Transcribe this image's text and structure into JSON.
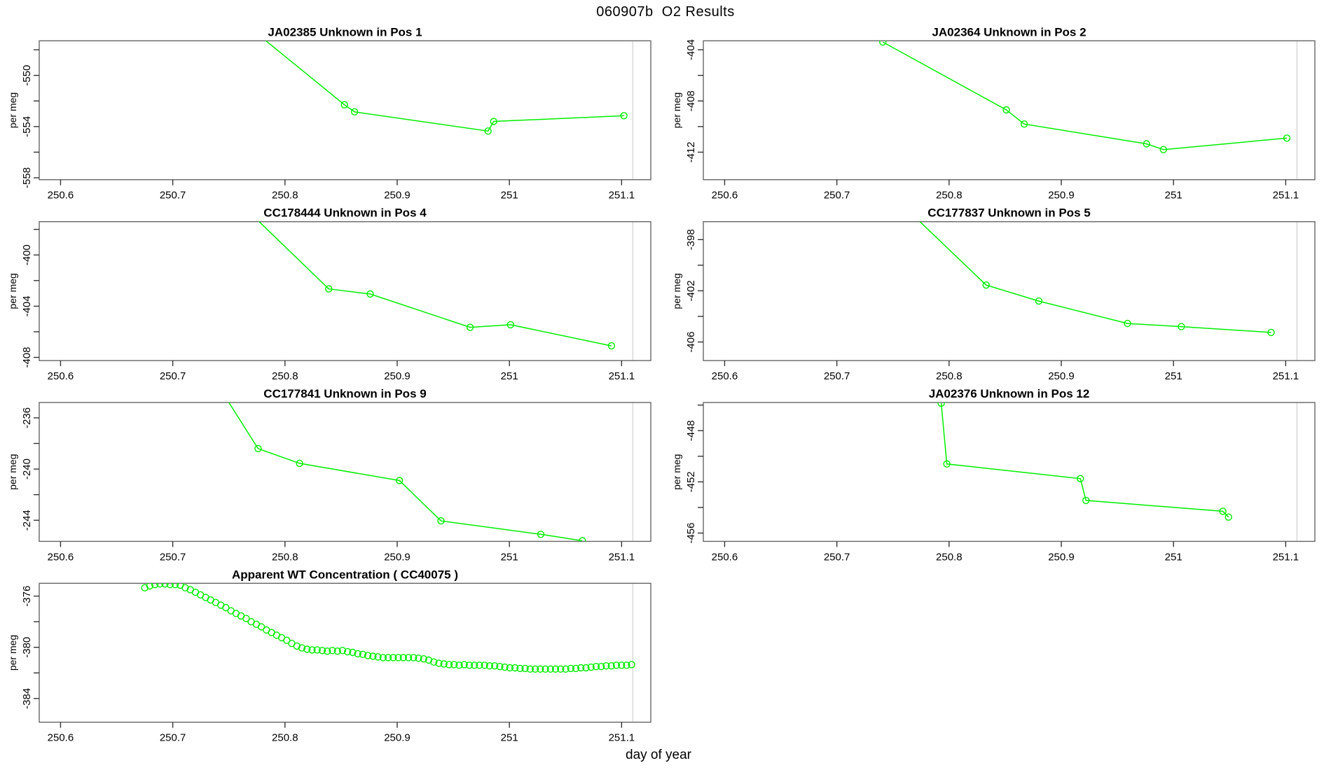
{
  "figure": {
    "title": "060907b  O2 Results",
    "xlabel": "day of year",
    "background_color": "#ffffff",
    "series_color": "#00ee00",
    "box_color": "#666666",
    "tick_color": "#333333",
    "guide_line_color": "#d8d8d8",
    "guide_line_x": 251.11
  },
  "chart_data": [
    {
      "id": "pos1",
      "type": "line",
      "title": "JA02385   Unknown in Pos 1",
      "ylabel": "per meg",
      "grid": false,
      "legend": "none",
      "marker": "open-circle",
      "xlim": [
        250.581,
        251.126
      ],
      "x_ticks": [
        250.6,
        250.7,
        250.8,
        250.9,
        251.0,
        251.1
      ],
      "ylim": [
        -558.15,
        -547.3
      ],
      "y_ticks": [
        -548,
        -550,
        -552,
        -554,
        -556,
        -558
      ],
      "y_tick_labels": [
        -550,
        -554,
        -558
      ],
      "line_enters_top_at_x": 250.783,
      "points": [
        [
          250.853,
          -552.3
        ],
        [
          250.862,
          -552.85
        ],
        [
          250.981,
          -554.35
        ],
        [
          250.986,
          -553.6
        ],
        [
          251.102,
          -553.15
        ]
      ]
    },
    {
      "id": "pos2",
      "type": "line",
      "title": "JA02364   Unknown in Pos 2",
      "ylabel": "per meg",
      "grid": false,
      "legend": "none",
      "marker": "open-circle",
      "xlim": [
        250.581,
        251.126
      ],
      "x_ticks": [
        250.6,
        250.7,
        250.8,
        250.9,
        251.0,
        251.1
      ],
      "ylim": [
        -414.15,
        -403.3
      ],
      "y_ticks": [
        -404,
        -406,
        -408,
        -410,
        -412
      ],
      "y_tick_labels": [
        -404,
        -408,
        -412
      ],
      "points": [
        [
          250.741,
          -403.4
        ],
        [
          250.851,
          -408.7
        ],
        [
          250.867,
          -409.8
        ],
        [
          250.976,
          -411.35
        ],
        [
          250.991,
          -411.8
        ],
        [
          251.101,
          -410.9
        ]
      ]
    },
    {
      "id": "pos4",
      "type": "line",
      "title": "CC178444   Unknown in Pos 4",
      "ylabel": "per meg",
      "grid": false,
      "legend": "none",
      "marker": "open-circle",
      "xlim": [
        250.581,
        251.126
      ],
      "x_ticks": [
        250.6,
        250.7,
        250.8,
        250.9,
        251.0,
        251.1
      ],
      "ylim": [
        -408.25,
        -397.4
      ],
      "y_ticks": [
        -398,
        -400,
        -402,
        -404,
        -406,
        -408
      ],
      "y_tick_labels": [
        -400,
        -404,
        -408
      ],
      "line_enters_top_at_x": 250.777,
      "points": [
        [
          250.839,
          -402.65
        ],
        [
          250.876,
          -403.05
        ],
        [
          250.965,
          -405.65
        ],
        [
          251.001,
          -405.45
        ],
        [
          251.091,
          -407.1
        ]
      ]
    },
    {
      "id": "pos5",
      "type": "line",
      "title": "CC177837   Unknown in Pos 5",
      "ylabel": "per meg",
      "grid": false,
      "legend": "none",
      "marker": "open-circle",
      "xlim": [
        250.581,
        251.126
      ],
      "x_ticks": [
        250.6,
        250.7,
        250.8,
        250.9,
        251.0,
        251.1
      ],
      "ylim": [
        -407.45,
        -396.6
      ],
      "y_ticks": [
        -398,
        -400,
        -402,
        -404,
        -406
      ],
      "y_tick_labels": [
        -398,
        -402,
        -406
      ],
      "line_enters_top_at_x": 250.774,
      "points": [
        [
          250.833,
          -401.55
        ],
        [
          250.88,
          -402.8
        ],
        [
          250.959,
          -404.55
        ],
        [
          251.007,
          -404.8
        ],
        [
          251.087,
          -405.25
        ]
      ]
    },
    {
      "id": "pos9",
      "type": "line",
      "title": "CC177841   Unknown in Pos 9",
      "ylabel": "per meg",
      "grid": false,
      "legend": "none",
      "marker": "open-circle",
      "xlim": [
        250.581,
        251.126
      ],
      "x_ticks": [
        250.6,
        250.7,
        250.8,
        250.9,
        251.0,
        251.1
      ],
      "ylim": [
        -245.65,
        -234.8
      ],
      "y_ticks": [
        -236,
        -238,
        -240,
        -242,
        -244
      ],
      "y_tick_labels": [
        -236,
        -240,
        -244
      ],
      "line_enters_top_at_x": 250.75,
      "points": [
        [
          250.776,
          -238.4
        ],
        [
          250.813,
          -239.55
        ],
        [
          250.902,
          -240.9
        ],
        [
          250.939,
          -244.05
        ],
        [
          251.028,
          -245.1
        ],
        [
          251.065,
          -245.6
        ]
      ]
    },
    {
      "id": "pos12",
      "type": "line",
      "title": "JA02376   Unknown in Pos 12",
      "ylabel": "per meg",
      "grid": false,
      "legend": "none",
      "marker": "open-circle",
      "xlim": [
        250.581,
        251.126
      ],
      "x_ticks": [
        250.6,
        250.7,
        250.8,
        250.9,
        251.0,
        251.1
      ],
      "ylim": [
        -456.65,
        -445.8
      ],
      "y_ticks": [
        -446,
        -448,
        -450,
        -452,
        -454,
        -456
      ],
      "y_tick_labels": [
        -448,
        -452,
        -456
      ],
      "points": [
        [
          250.793,
          -445.85
        ],
        [
          250.798,
          -450.6
        ],
        [
          250.917,
          -451.75
        ],
        [
          250.922,
          -453.45
        ],
        [
          251.044,
          -454.3
        ],
        [
          251.049,
          -454.75
        ]
      ]
    },
    {
      "id": "wt-concentration",
      "type": "scatter",
      "title": "Apparent WT Concentration ( CC40075 )",
      "ylabel": "per meg",
      "grid": false,
      "legend": "none",
      "marker": "open-circle",
      "xlim": [
        250.581,
        251.126
      ],
      "x_ticks": [
        250.6,
        250.7,
        250.8,
        250.9,
        251.0,
        251.1
      ],
      "ylim": [
        -385.85,
        -375.0
      ],
      "y_ticks": [
        -376,
        -378,
        -380,
        -382,
        -384
      ],
      "y_tick_labels": [
        -376,
        -380,
        -384
      ],
      "series_compact": {
        "x_start": 250.675,
        "x_step": 0.00452,
        "values": [
          -375.35,
          -375.2,
          -375.1,
          -375.05,
          -375.05,
          -375.1,
          -375.1,
          -375.15,
          -375.35,
          -375.5,
          -375.7,
          -375.9,
          -376.1,
          -376.3,
          -376.5,
          -376.7,
          -376.9,
          -377.15,
          -377.35,
          -377.55,
          -377.75,
          -378.0,
          -378.2,
          -378.4,
          -378.65,
          -378.85,
          -379.05,
          -379.25,
          -379.45,
          -379.7,
          -379.9,
          -380.05,
          -380.15,
          -380.2,
          -380.2,
          -380.25,
          -380.3,
          -380.25,
          -380.3,
          -380.25,
          -380.35,
          -380.4,
          -380.5,
          -380.55,
          -380.65,
          -380.7,
          -380.75,
          -380.8,
          -380.8,
          -380.8,
          -380.8,
          -380.8,
          -380.8,
          -380.8,
          -380.85,
          -380.9,
          -381.0,
          -381.15,
          -381.25,
          -381.3,
          -381.35,
          -381.35,
          -381.4,
          -381.35,
          -381.4,
          -381.4,
          -381.4,
          -381.4,
          -381.45,
          -381.45,
          -381.5,
          -381.55,
          -381.6,
          -381.6,
          -381.65,
          -381.65,
          -381.7,
          -381.7,
          -381.7,
          -381.7,
          -381.7,
          -381.7,
          -381.7,
          -381.7,
          -381.65,
          -381.65,
          -381.6,
          -381.6,
          -381.55,
          -381.5,
          -381.5,
          -381.45,
          -381.45,
          -381.4,
          -381.4,
          -381.4,
          -381.35
        ]
      }
    }
  ]
}
